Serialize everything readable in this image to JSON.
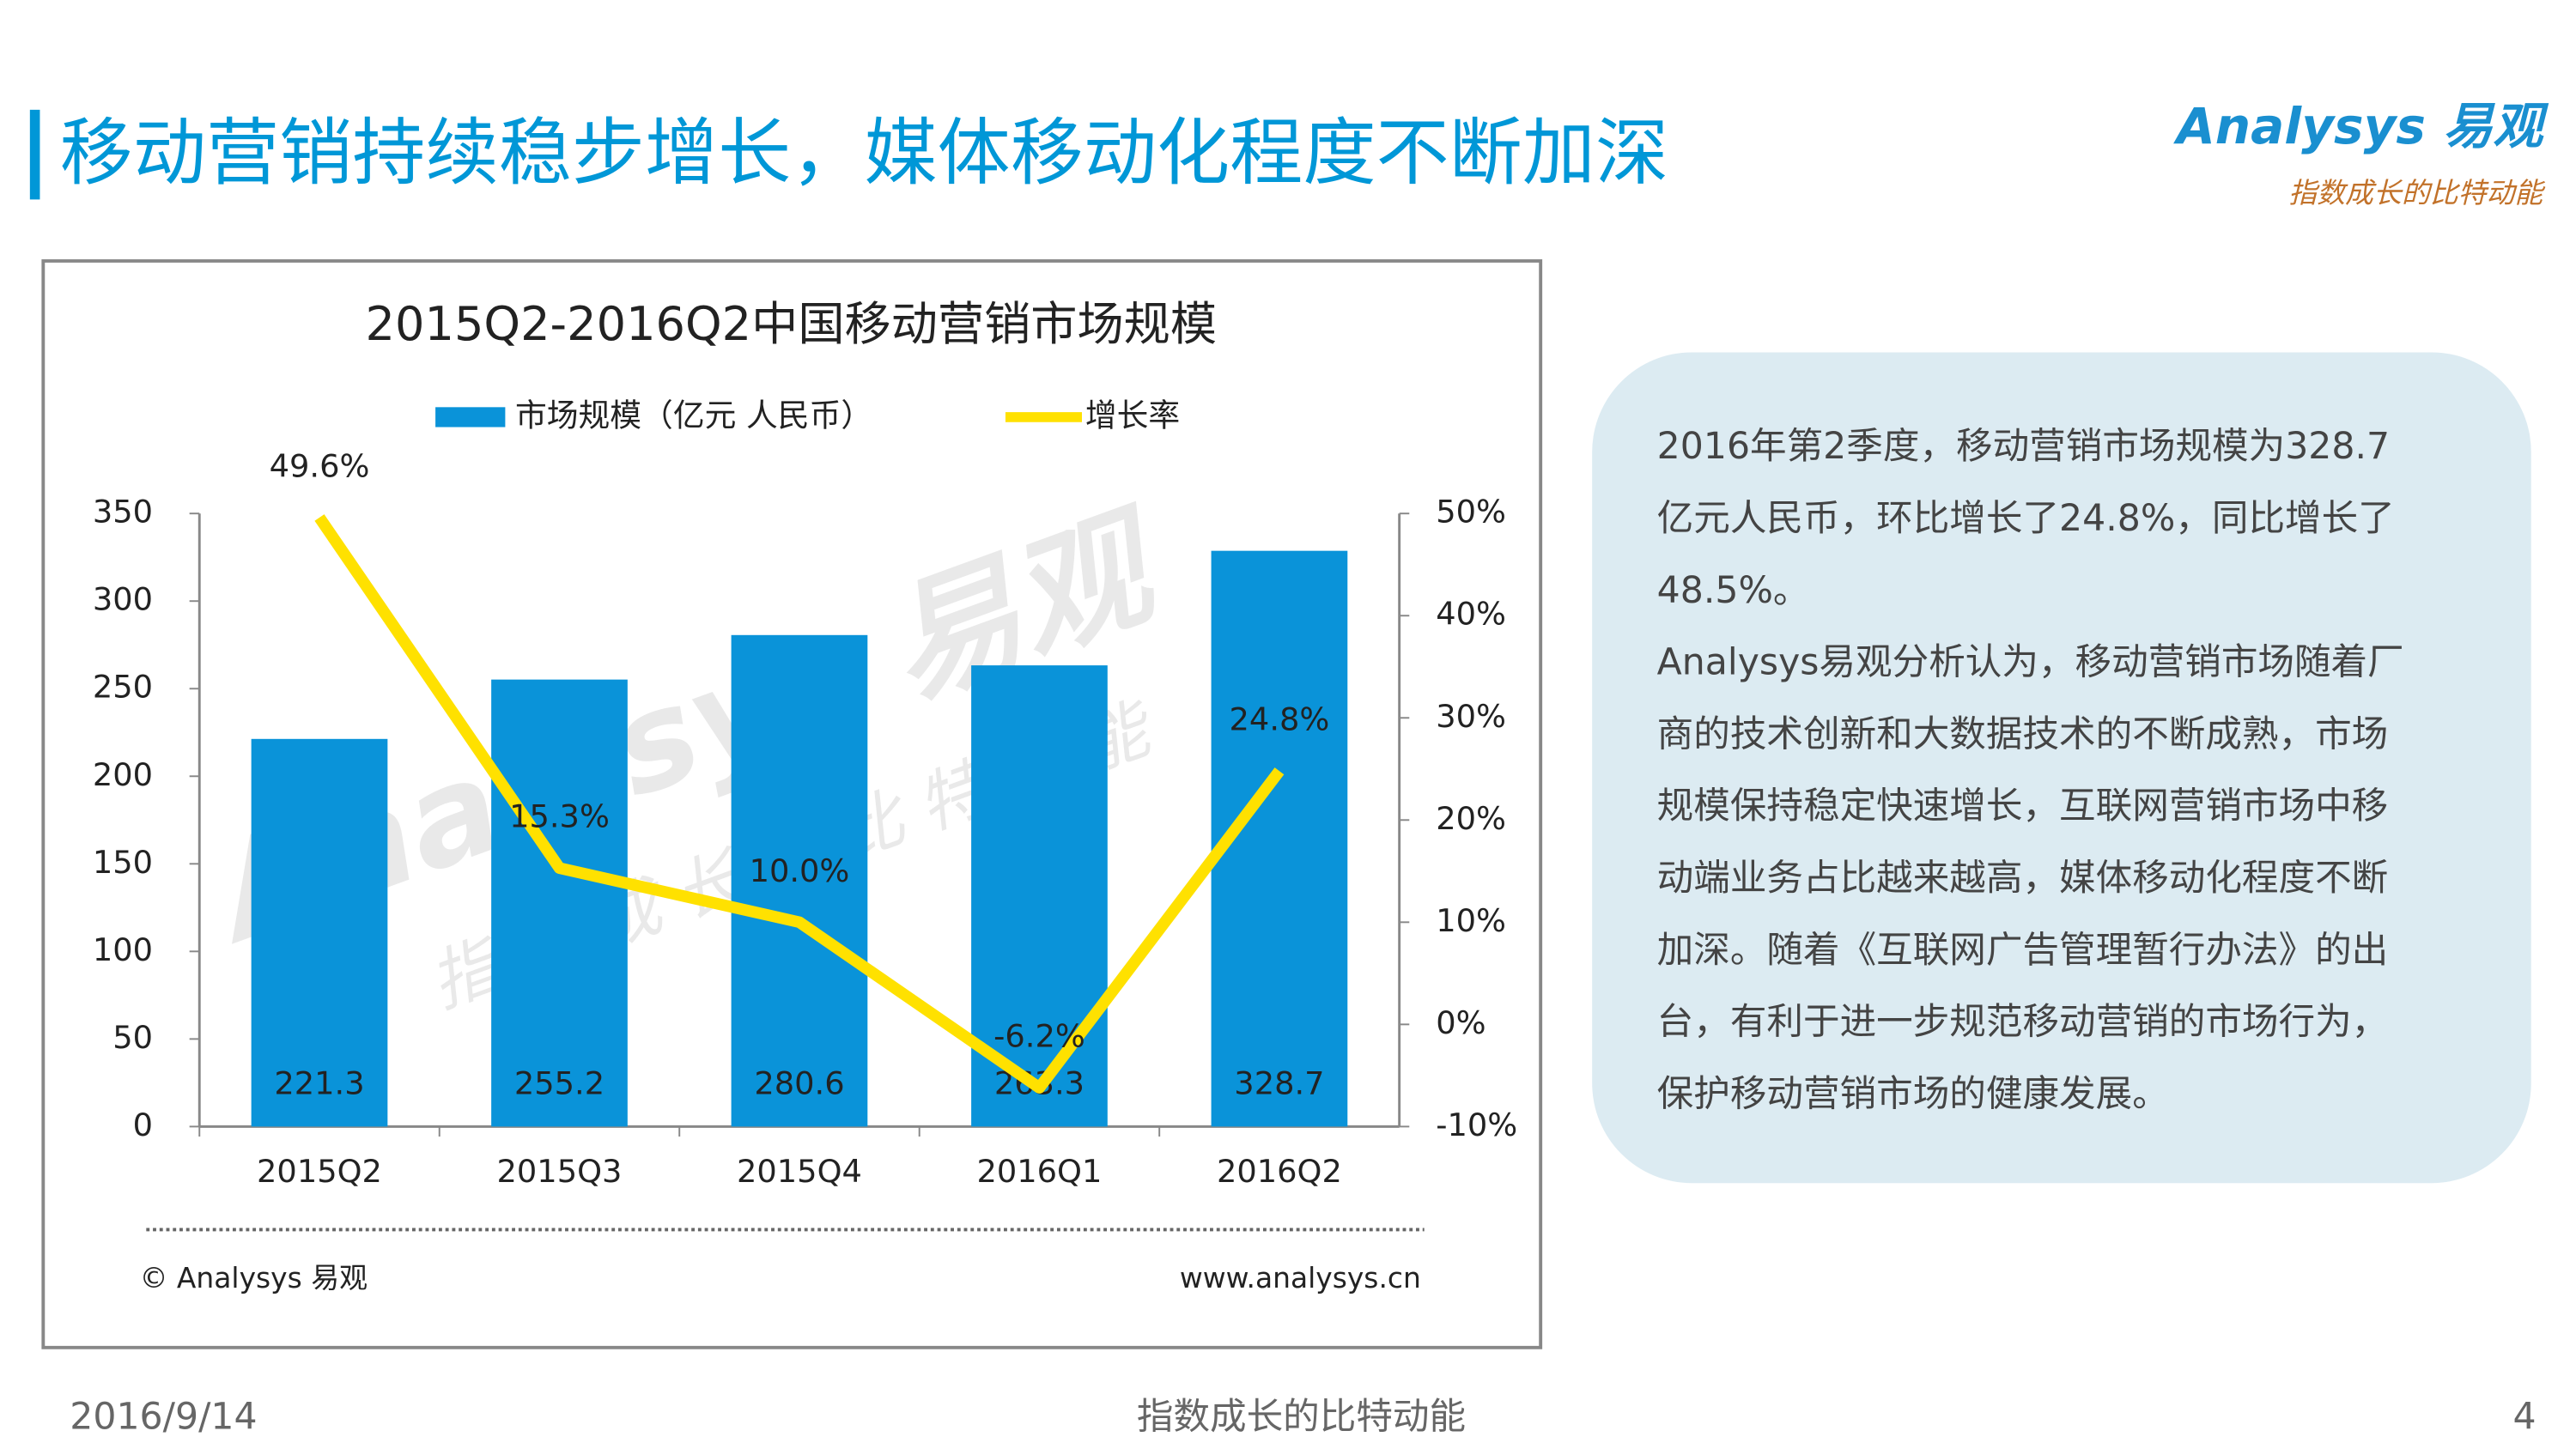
{
  "header": {
    "title": "移动营销持续稳步增长，媒体移动化程度不断加深",
    "logo": "Analysys 易观",
    "slogan": "指数成长的比特动能"
  },
  "chart_data": {
    "type": "bar",
    "title": "2015Q2-2016Q2中国移动营销市场规模",
    "categories": [
      "2015Q2",
      "2015Q3",
      "2015Q4",
      "2016Q1",
      "2016Q2"
    ],
    "series": [
      {
        "name": "市场规模（亿元 人民币）",
        "type": "bar",
        "color": "#0a93d9",
        "values": [
          221.3,
          255.2,
          280.6,
          263.3,
          328.7
        ]
      },
      {
        "name": "增长率",
        "type": "line",
        "axis": "y2",
        "color": "#ffe100",
        "values": [
          49.6,
          15.3,
          10.0,
          -6.2,
          24.8
        ],
        "value_labels": [
          "49.6%",
          "15.3%",
          "10.0%",
          "-6.2%",
          "24.8%"
        ]
      }
    ],
    "ylim": [
      0,
      350
    ],
    "yticks": [
      0,
      50,
      100,
      150,
      200,
      250,
      300,
      350
    ],
    "y2lim": [
      -10,
      50
    ],
    "y2ticks": [
      {
        "value": -10,
        "label": "-10%"
      },
      {
        "value": 0,
        "label": "0%"
      },
      {
        "value": 10,
        "label": "10%"
      },
      {
        "value": 20,
        "label": "20%"
      },
      {
        "value": 30,
        "label": "30%"
      },
      {
        "value": 40,
        "label": "40%"
      },
      {
        "value": 50,
        "label": "50%"
      }
    ],
    "legend": "top",
    "grid": false,
    "source": "© Analysys 易观",
    "website": "www.analysys.cn"
  },
  "text_box": {
    "lines": [
      "2016年第2季度，移动营销市场规模为328.7",
      "亿元人民币，环比增长了24.8%，同比增长了",
      "48.5%。",
      "Analysys易观分析认为，移动营销市场随着厂",
      "商的技术创新和大数据技术的不断成熟，市场",
      "规模保持稳定快速增长，互联网营销市场中移",
      "动端业务占比越来越高，媒体移动化程度不断",
      "加深。随着《互联网广告管理暂行办法》的出",
      "台，有利于进一步规范移动营销的市场行为，",
      "保护移动营销市场的健康发展。"
    ]
  },
  "footer": {
    "date": "2016/9/14",
    "slogan": "指数成长的比特动能",
    "page": "4"
  }
}
